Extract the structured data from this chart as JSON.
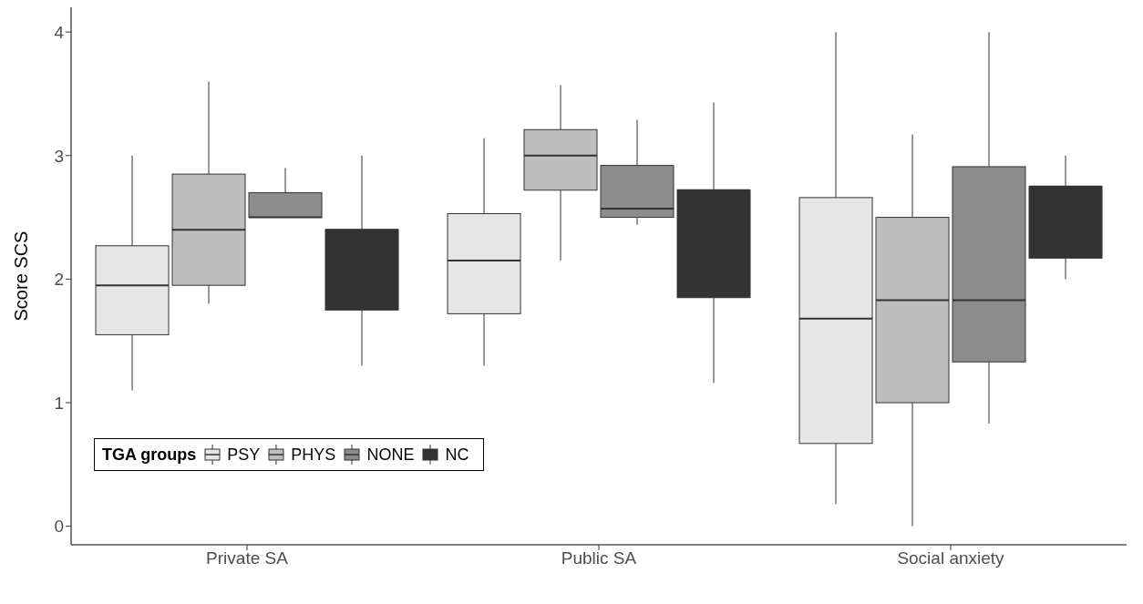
{
  "chart_data": {
    "type": "box",
    "ylabel": "Score SCS",
    "legend_title": "TGA groups",
    "legend": "bottom left",
    "categories": [
      "Private SA",
      "Public SA",
      "Social anxiety"
    ],
    "ylim": [
      -0.15,
      4.2
    ],
    "yticks": [
      0,
      1,
      2,
      3,
      4
    ],
    "series": [
      {
        "name": "PSY",
        "color": "#e6e6e6",
        "boxes": [
          {
            "low": 1.1,
            "q1": 1.55,
            "median": 1.95,
            "q3": 2.27,
            "high": 3.0
          },
          {
            "low": 1.3,
            "q1": 1.72,
            "median": 2.15,
            "q3": 2.53,
            "high": 3.14
          },
          {
            "low": 0.18,
            "q1": 0.67,
            "median": 1.68,
            "q3": 2.66,
            "high": 4.0
          }
        ]
      },
      {
        "name": "PHYS",
        "color": "#bebebe",
        "boxes": [
          {
            "low": 1.8,
            "q1": 1.95,
            "median": 2.4,
            "q3": 2.85,
            "high": 3.6
          },
          {
            "low": 2.15,
            "q1": 2.72,
            "median": 3.0,
            "q3": 3.21,
            "high": 3.57
          },
          {
            "low": 0.0,
            "q1": 1.0,
            "median": 1.83,
            "q3": 2.5,
            "high": 3.17
          }
        ]
      },
      {
        "name": "NONE",
        "color": "#8c8c8c",
        "boxes": [
          {
            "low": 2.5,
            "q1": 2.5,
            "median": 2.5,
            "q3": 2.7,
            "high": 2.9
          },
          {
            "low": 2.44,
            "q1": 2.5,
            "median": 2.57,
            "q3": 2.92,
            "high": 3.29
          },
          {
            "low": 0.83,
            "q1": 1.33,
            "median": 1.83,
            "q3": 2.91,
            "high": 4.0
          }
        ]
      },
      {
        "name": "NC",
        "color": "#333333",
        "boxes": [
          {
            "low": 1.3,
            "q1": 1.75,
            "median": 2.4,
            "q3": 2.4,
            "high": 3.0
          },
          {
            "low": 1.16,
            "q1": 1.85,
            "median": 2.72,
            "q3": 2.72,
            "high": 3.43
          },
          {
            "low": 2.0,
            "q1": 2.17,
            "median": 2.75,
            "q3": 2.75,
            "high": 3.0
          }
        ]
      }
    ]
  }
}
